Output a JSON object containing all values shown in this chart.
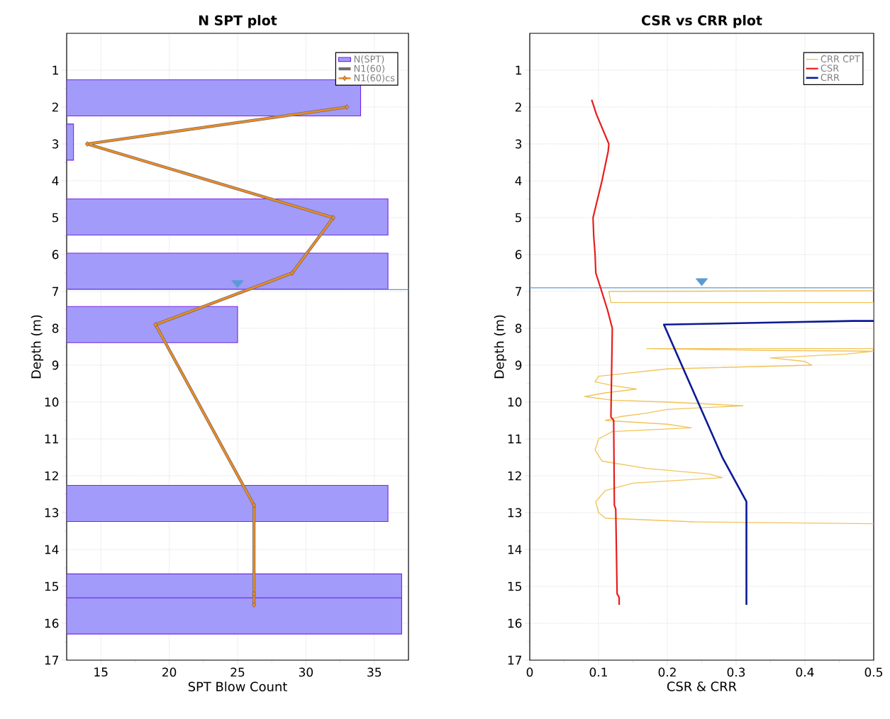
{
  "chart_data": [
    {
      "type": "bar",
      "orientation": "horizontal",
      "title": "N SPT plot",
      "xlabel": "SPT Blow Count",
      "ylabel": "Depth (m)",
      "xlim": [
        12.5,
        37.5
      ],
      "xticks": [
        15,
        20,
        25,
        30,
        35
      ],
      "ylim": [
        17,
        0
      ],
      "yticks": [
        1,
        2,
        3,
        4,
        5,
        6,
        7,
        8,
        9,
        10,
        11,
        12,
        13,
        14,
        15,
        16,
        17
      ],
      "grid": true,
      "legend": "top right",
      "ref_lines": [
        {
          "axis": "y",
          "value": 6.95,
          "color": "#5b9bd5"
        }
      ],
      "series": [
        {
          "name": "N(SPT)",
          "type": "bar",
          "color": "#a29bfa",
          "x": [
            1.75,
            2.95,
            4.98,
            6.45,
            7.9,
            12.75,
            15.15,
            15.8
          ],
          "values": [
            34,
            13,
            36,
            36,
            25,
            36,
            37,
            37
          ]
        },
        {
          "name": "N1(60)",
          "type": "line",
          "color": "#6e6e6e",
          "x": [
            2.0,
            3.0,
            5.0,
            6.5,
            7.9,
            12.8,
            15.2,
            15.5
          ],
          "values": [
            33,
            14,
            32,
            29,
            19,
            26.2,
            26.2,
            26.2
          ]
        },
        {
          "name": "N1(60)cs",
          "type": "line",
          "color": "#f28a1e",
          "marker": "diamond",
          "x": [
            2.0,
            3.0,
            5.0,
            6.5,
            7.9,
            12.8,
            15.2,
            15.5
          ],
          "values": [
            33,
            14,
            32,
            29,
            19,
            26.2,
            26.2,
            26.2
          ]
        }
      ]
    },
    {
      "type": "line",
      "orientation": "horizontal",
      "title": "CSR vs CRR plot",
      "xlabel": "CSR & CRR",
      "ylabel": "Depth (m)",
      "xlim": [
        0,
        0.5
      ],
      "xticks": [
        0,
        0.1,
        0.2,
        0.3,
        0.4,
        0.5
      ],
      "ylim": [
        17,
        0
      ],
      "yticks": [
        1,
        2,
        3,
        4,
        5,
        6,
        7,
        8,
        9,
        10,
        11,
        12,
        13,
        14,
        15,
        16,
        17
      ],
      "grid": true,
      "legend": "top right",
      "ref_lines": [
        {
          "axis": "y",
          "value": 6.9,
          "color": "#5b9bd5"
        }
      ],
      "series": [
        {
          "name": "CRR CPT",
          "color": "#f2c45a",
          "x": [
            6.98,
            7.0,
            7.3,
            7.3,
            8.55,
            8.55,
            8.6,
            8.62,
            8.7,
            8.8,
            8.9,
            9.0,
            9.1,
            9.2,
            9.3,
            9.45,
            9.55,
            9.65,
            9.75,
            9.85,
            9.95,
            10.0,
            10.1,
            10.2,
            10.3,
            10.4,
            10.5,
            10.6,
            10.7,
            10.8,
            11.0,
            11.3,
            11.6,
            11.8,
            11.95,
            12.05,
            12.2,
            12.4,
            12.7,
            13.0,
            13.15,
            13.25,
            13.3
          ],
          "values": [
            0.5,
            0.115,
            0.118,
            0.5,
            0.5,
            0.17,
            0.35,
            0.5,
            0.46,
            0.35,
            0.4,
            0.41,
            0.2,
            0.15,
            0.1,
            0.095,
            0.12,
            0.155,
            0.11,
            0.08,
            0.12,
            0.2,
            0.31,
            0.2,
            0.17,
            0.13,
            0.11,
            0.2,
            0.235,
            0.12,
            0.1,
            0.095,
            0.105,
            0.17,
            0.26,
            0.28,
            0.15,
            0.11,
            0.096,
            0.1,
            0.11,
            0.24,
            0.5
          ]
        },
        {
          "name": "CSR",
          "color": "#e81c1c",
          "x": [
            1.8,
            2.2,
            3.0,
            3.2,
            4.0,
            5.0,
            5.5,
            6.0,
            6.5,
            6.9,
            7.5,
            8.0,
            10.4,
            10.5,
            12.8,
            12.9,
            15.2,
            15.3,
            15.5
          ],
          "values": [
            0.09,
            0.097,
            0.115,
            0.114,
            0.105,
            0.092,
            0.093,
            0.095,
            0.096,
            0.103,
            0.113,
            0.12,
            0.118,
            0.122,
            0.123,
            0.125,
            0.127,
            0.13,
            0.13
          ]
        },
        {
          "name": "CRR",
          "color": "#0a1a96",
          "x": [
            7.8,
            7.8,
            7.85,
            7.9,
            11.5,
            12.7,
            15.5
          ],
          "values": [
            0.5,
            0.47,
            0.33,
            0.195,
            0.28,
            0.315,
            0.315
          ]
        }
      ]
    }
  ]
}
